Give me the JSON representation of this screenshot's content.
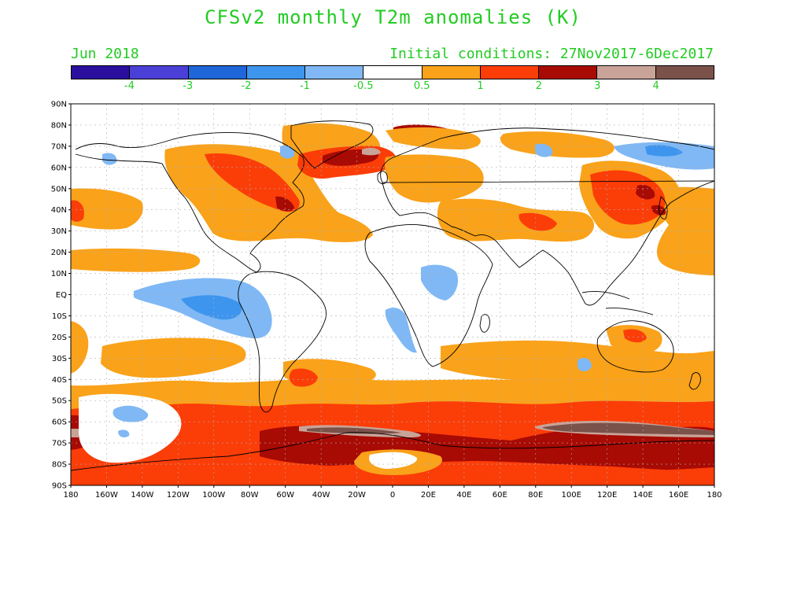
{
  "title": "CFSv2 monthly T2m anomalies (K)",
  "valid_month": "Jun 2018",
  "initial_conditions": "Initial conditions: 27Nov2017-6Dec2017",
  "legend": {
    "colors": [
      "#2a0f9e",
      "#4a3fd6",
      "#1f66d8",
      "#3e95ee",
      "#7fb8f5",
      "#ffffff",
      "#f9a21a",
      "#fb3d08",
      "#a80a04",
      "#c9a397",
      "#7a524a"
    ],
    "labels": [
      "-4",
      "-3",
      "-2",
      "-1",
      "-0.5",
      "0.5",
      "1",
      "2",
      "3",
      "4"
    ]
  },
  "axes": {
    "lat_labels": [
      "90N",
      "80N",
      "70N",
      "60N",
      "50N",
      "40N",
      "30N",
      "20N",
      "10N",
      "EQ",
      "10S",
      "20S",
      "30S",
      "40S",
      "50S",
      "60S",
      "70S",
      "80S",
      "90S"
    ],
    "lon_labels": [
      "180",
      "160W",
      "140W",
      "120W",
      "100W",
      "80W",
      "60W",
      "40W",
      "20W",
      "0",
      "20E",
      "40E",
      "60E",
      "80E",
      "100E",
      "120E",
      "140E",
      "160E",
      "180"
    ]
  },
  "colors": {
    "text": "#22cc22",
    "ocean": "#ffffff"
  }
}
